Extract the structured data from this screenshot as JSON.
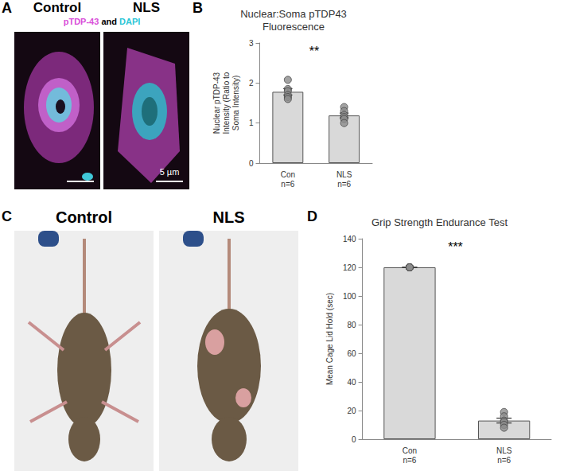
{
  "figure": {
    "panel_a": {
      "panel": "A",
      "columns": [
        "Control",
        "NLS"
      ],
      "stain_label": [
        {
          "text": "pTDP-43",
          "color": "#d94fd9"
        },
        {
          "text": "and",
          "color": "#000000"
        },
        {
          "text": "DAPI",
          "color": "#2cc6d6"
        }
      ],
      "scale_bar": "5 µm"
    },
    "panel_c": {
      "panel": "C",
      "columns": [
        "Control",
        "NLS"
      ]
    }
  },
  "chart_data": [
    {
      "panel": "B",
      "type": "bar",
      "title": "Nuclear:Soma pTDP43 Fluorescence",
      "y_label": "Nuclear pTDP-43 Intensity (Ratio to Soma Intensity)",
      "categories": [
        "Con\nn=6",
        "NLS\nn=6"
      ],
      "values": [
        1.78,
        1.19
      ],
      "errors": [
        0.08,
        0.06
      ],
      "points": [
        [
          2.08,
          1.85,
          1.8,
          1.7,
          1.65,
          1.6
        ],
        [
          1.4,
          1.3,
          1.2,
          1.15,
          1.1,
          1.0
        ]
      ],
      "significance": "**",
      "color": "#d9d9d9",
      "ylim": [
        0,
        3
      ],
      "yticks": [
        0,
        1,
        2,
        3
      ],
      "grid": false
    },
    {
      "panel": "D",
      "type": "bar",
      "title": "Grip Strength Endurance Test",
      "y_label": "Mean Cage Lid Hold (sec)",
      "categories": [
        "Con\nn=6",
        "NLS\nn=6"
      ],
      "values": [
        120,
        13
      ],
      "errors": [
        0,
        1.7
      ],
      "points": [
        [
          120,
          120,
          120,
          120,
          120,
          120
        ],
        [
          19,
          16,
          13,
          12,
          10,
          8
        ]
      ],
      "significance": "***",
      "color": "#d9d9d9",
      "ylim": [
        0,
        140
      ],
      "yticks": [
        0,
        20,
        40,
        60,
        80,
        100,
        120,
        140
      ],
      "grid": false
    }
  ]
}
